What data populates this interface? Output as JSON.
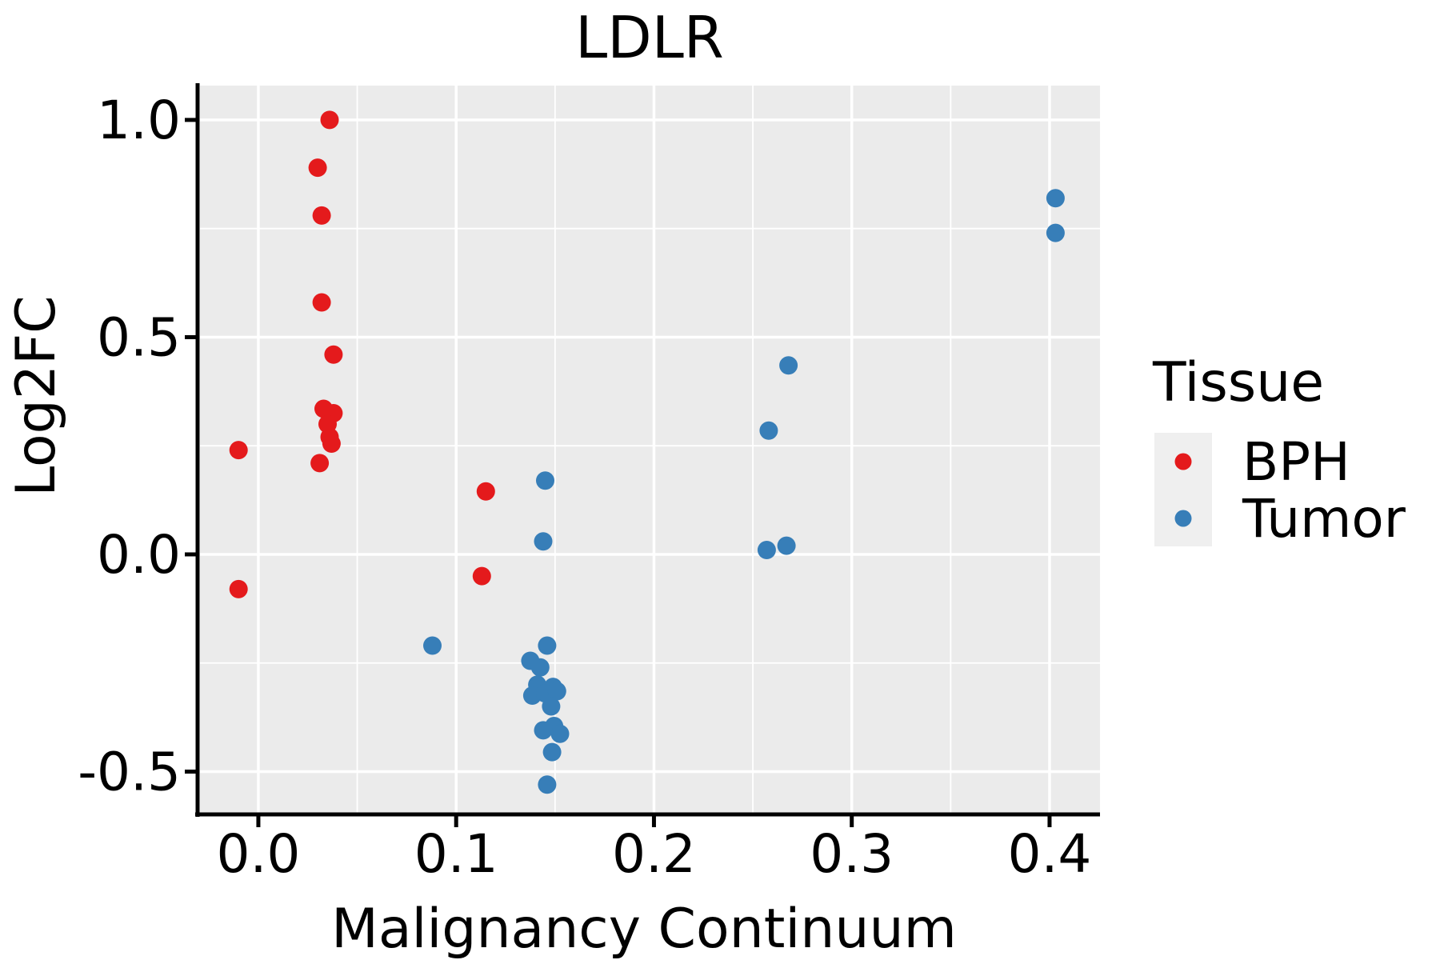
{
  "title": "LDLR",
  "axes": {
    "x": {
      "label": "Malignancy Continuum",
      "tick_labels": [
        "0.0",
        "0.1",
        "0.2",
        "0.3",
        "0.4"
      ],
      "tick_values": [
        0.0,
        0.1,
        0.2,
        0.3,
        0.4
      ],
      "minor_values": [
        0.05,
        0.15,
        0.25,
        0.35
      ],
      "range": [
        -0.0295,
        0.4255
      ]
    },
    "y": {
      "label": "Log2FC",
      "tick_labels": [
        "1.0",
        "0.5",
        "0.0",
        "-0.5"
      ],
      "tick_values": [
        1.0,
        0.5,
        0.0,
        -0.5
      ],
      "minor_values": [
        0.75,
        0.25,
        -0.25
      ],
      "range": [
        -0.5985,
        1.079
      ]
    }
  },
  "legend": {
    "title": "Tissue",
    "entries": [
      {
        "label": "BPH",
        "color": "#E41A1C"
      },
      {
        "label": "Tumor",
        "color": "#377EB8"
      }
    ]
  },
  "style": {
    "panel_bg": "#EBEBEB",
    "grid_color": "#FFFFFF",
    "axis_color": "#000000",
    "text_color": "#000000",
    "legend_key_bg": "#EFEFEF"
  },
  "chart_data": {
    "type": "scatter",
    "title": "LDLR",
    "xlabel": "Malignancy Continuum",
    "ylabel": "Log2FC",
    "xlim": [
      -0.0295,
      0.4255
    ],
    "ylim": [
      -0.5985,
      1.079
    ],
    "grid": true,
    "legend_title": "Tissue",
    "legend_position": "right",
    "series": [
      {
        "name": "BPH",
        "color": "#E41A1C",
        "points": [
          [
            -0.01,
            0.24
          ],
          [
            -0.01,
            -0.08
          ],
          [
            0.036,
            1.0
          ],
          [
            0.03,
            0.89
          ],
          [
            0.032,
            0.78
          ],
          [
            0.032,
            0.58
          ],
          [
            0.038,
            0.46
          ],
          [
            0.033,
            0.335
          ],
          [
            0.038,
            0.325
          ],
          [
            0.035,
            0.3
          ],
          [
            0.036,
            0.27
          ],
          [
            0.037,
            0.255
          ],
          [
            0.031,
            0.21
          ],
          [
            0.115,
            0.145
          ],
          [
            0.113,
            -0.05
          ]
        ]
      },
      {
        "name": "Tumor",
        "color": "#377EB8",
        "points": [
          [
            0.403,
            0.82
          ],
          [
            0.403,
            0.74
          ],
          [
            0.268,
            0.435
          ],
          [
            0.258,
            0.285
          ],
          [
            0.267,
            0.02
          ],
          [
            0.257,
            0.01
          ],
          [
            0.145,
            0.17
          ],
          [
            0.144,
            0.03
          ],
          [
            0.088,
            -0.21
          ],
          [
            0.146,
            -0.21
          ],
          [
            0.1375,
            -0.245
          ],
          [
            0.1425,
            -0.26
          ],
          [
            0.141,
            -0.3
          ],
          [
            0.149,
            -0.305
          ],
          [
            0.1385,
            -0.325
          ],
          [
            0.145,
            -0.32
          ],
          [
            0.151,
            -0.315
          ],
          [
            0.148,
            -0.35
          ],
          [
            0.1495,
            -0.395
          ],
          [
            0.144,
            -0.405
          ],
          [
            0.1525,
            -0.413
          ],
          [
            0.1485,
            -0.455
          ],
          [
            0.146,
            -0.53
          ]
        ]
      }
    ]
  }
}
